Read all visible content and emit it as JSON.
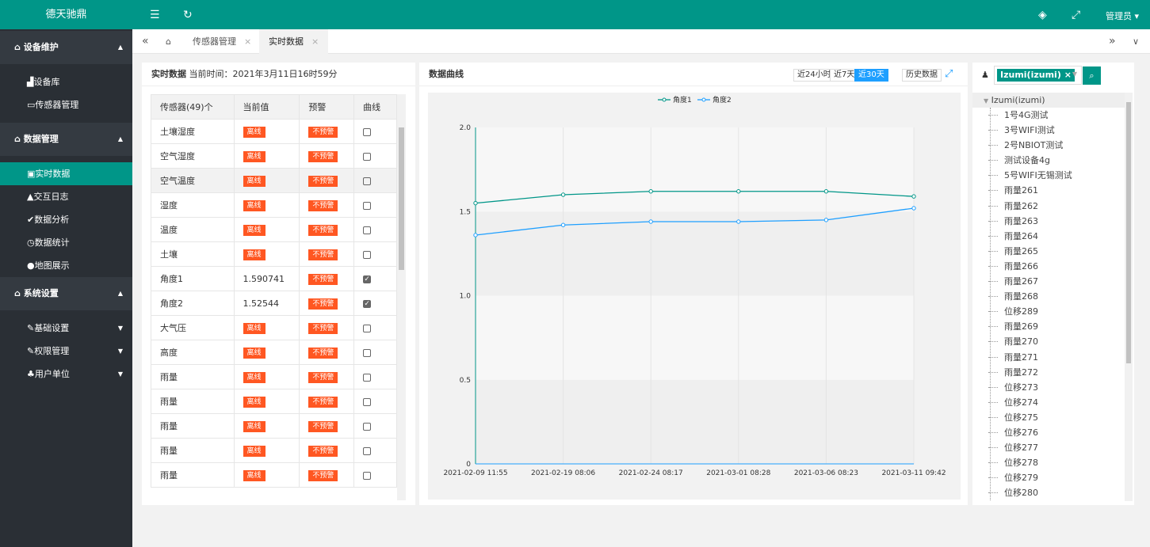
{
  "app": {
    "title": "德天驰鼎",
    "user": "管理员"
  },
  "nav": {
    "g1": "设备维护",
    "g1_items": [
      "设备库",
      "传感器管理"
    ],
    "g2": "数据管理",
    "g2_items": [
      "实时数据",
      "交互日志",
      "数据分析",
      "数据统计",
      "地图展示"
    ],
    "g3": "系统设置",
    "g3_items": [
      "基础设置",
      "权限管理",
      "用户单位"
    ]
  },
  "tabs": [
    "传感器管理",
    "实时数据"
  ],
  "rt": {
    "title": "实时数据",
    "time_label": "当前时间：",
    "time": "2021年3月11日16时59分",
    "headers": [
      "传感器(49)个",
      "当前值",
      "预警",
      "曲线"
    ],
    "rows": [
      {
        "name": "土壤湿度",
        "value": "",
        "status": "离线",
        "alarm": "不预警",
        "checked": false
      },
      {
        "name": "空气湿度",
        "value": "",
        "status": "离线",
        "alarm": "不预警",
        "checked": false
      },
      {
        "name": "空气温度",
        "value": "",
        "status": "离线",
        "alarm": "不预警",
        "checked": false
      },
      {
        "name": "湿度",
        "value": "",
        "status": "离线",
        "alarm": "不预警",
        "checked": false
      },
      {
        "name": "温度",
        "value": "",
        "status": "离线",
        "alarm": "不预警",
        "checked": false
      },
      {
        "name": "土壤",
        "value": "",
        "status": "离线",
        "alarm": "不预警",
        "checked": false
      },
      {
        "name": "角度1",
        "value": "1.590741",
        "status": "",
        "alarm": "不预警",
        "checked": true
      },
      {
        "name": "角度2",
        "value": "1.52544",
        "status": "",
        "alarm": "不预警",
        "checked": true
      },
      {
        "name": "大气压",
        "value": "",
        "status": "离线",
        "alarm": "不预警",
        "checked": false
      },
      {
        "name": "高度",
        "value": "",
        "status": "离线",
        "alarm": "不预警",
        "checked": false
      },
      {
        "name": "雨量",
        "value": "",
        "status": "离线",
        "alarm": "不预警",
        "checked": false
      },
      {
        "name": "雨量",
        "value": "",
        "status": "离线",
        "alarm": "不预警",
        "checked": false
      },
      {
        "name": "雨量",
        "value": "",
        "status": "离线",
        "alarm": "不预警",
        "checked": false
      },
      {
        "name": "雨量",
        "value": "",
        "status": "离线",
        "alarm": "不预警",
        "checked": false
      },
      {
        "name": "雨量",
        "value": "",
        "status": "离线",
        "alarm": "不预警",
        "checked": false
      }
    ]
  },
  "curve": {
    "title": "数据曲线",
    "ranges": [
      "近24小时",
      "近7天",
      "近30天"
    ],
    "active_range": "近30天",
    "history": "历史数据"
  },
  "chart_data": {
    "type": "line",
    "x": [
      "2021-02-09 11:55",
      "2021-02-19 08:06",
      "2021-02-24 08:17",
      "2021-03-01 08:28",
      "2021-03-06 08:23",
      "2021-03-11 09:42"
    ],
    "ylim": [
      0,
      2.0
    ],
    "yticks": [
      "0",
      "0.5",
      "1.0",
      "1.5",
      "2.0"
    ],
    "series": [
      {
        "name": "角度1",
        "color": "#009688",
        "values": [
          1.55,
          1.6,
          1.62,
          1.62,
          1.62,
          1.59
        ]
      },
      {
        "name": "角度2",
        "color": "#1e9fff",
        "values": [
          1.36,
          1.42,
          1.44,
          1.44,
          1.45,
          1.52
        ]
      }
    ]
  },
  "tree": {
    "selected": "Izumi(izumi)",
    "root": "Izumi(izumi)",
    "items": [
      "1号4G测试",
      "3号WIFI测试",
      "2号NBIOT测试",
      "测试设备4g",
      "5号WIFI无锡测试",
      "雨量261",
      "雨量262",
      "雨量263",
      "雨量264",
      "雨量265",
      "雨量266",
      "雨量267",
      "雨量268",
      "位移289",
      "雨量269",
      "雨量270",
      "雨量271",
      "雨量272",
      "位移273",
      "位移274",
      "位移275",
      "位移276",
      "位移277",
      "位移278",
      "位移279",
      "位移280"
    ]
  }
}
